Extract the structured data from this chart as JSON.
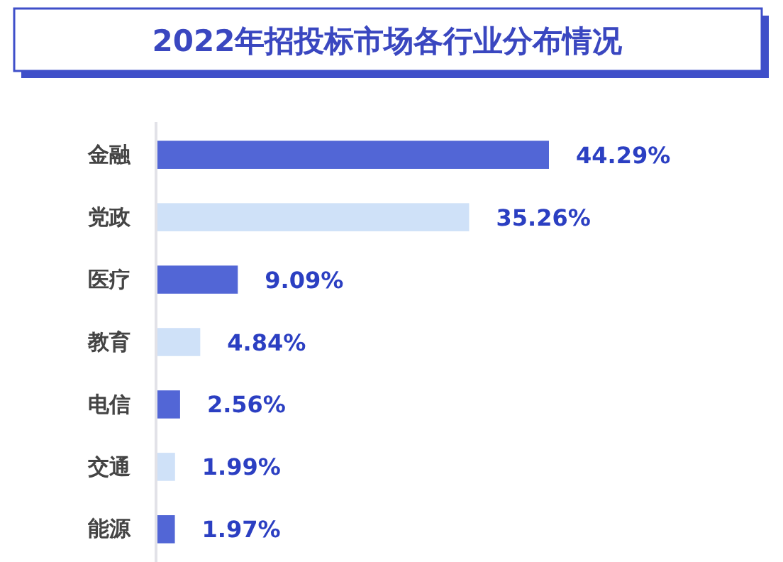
{
  "chart_data": {
    "type": "bar",
    "orientation": "horizontal",
    "title": "2022年招投标市场各行业分布情况",
    "categories": [
      "金融",
      "党政",
      "医疗",
      "教育",
      "电信",
      "交通",
      "能源"
    ],
    "values": [
      44.29,
      35.26,
      9.09,
      4.84,
      2.56,
      1.99,
      1.97
    ],
    "colors": [
      "#5266d6",
      "#cfe1f8",
      "#5266d6",
      "#cfe1f8",
      "#5266d6",
      "#cfe1f8",
      "#5266d6"
    ],
    "value_labels": [
      "44.29%",
      "35.26%",
      "9.09%",
      "4.84%",
      "2.56%",
      "1.99%",
      "1.97%"
    ]
  }
}
